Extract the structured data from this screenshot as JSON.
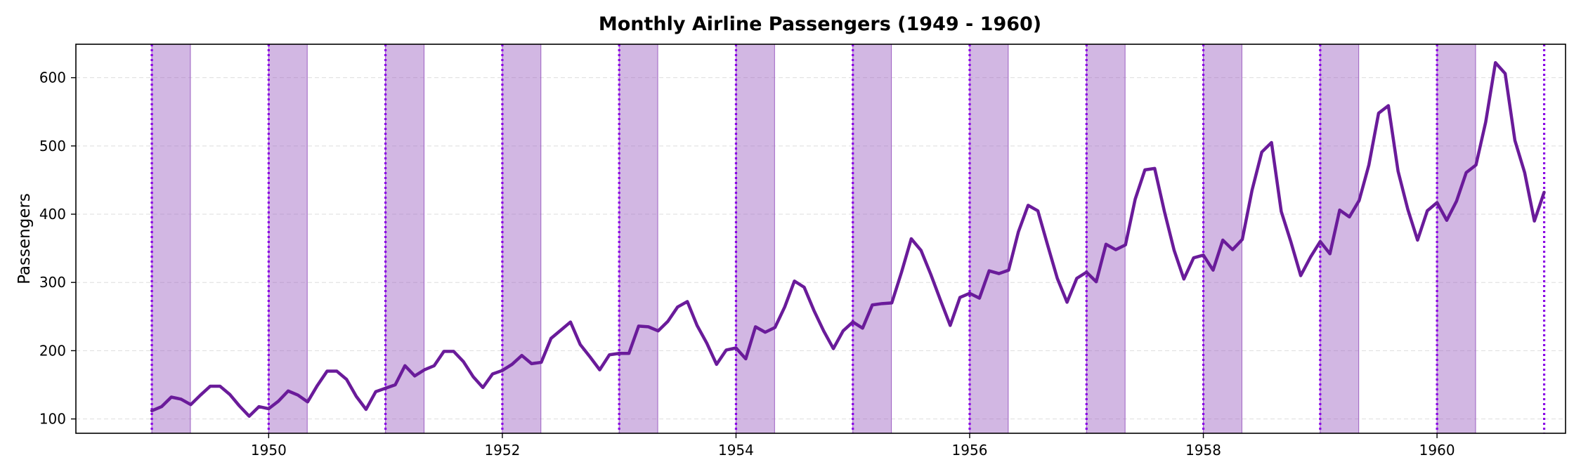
{
  "chart_data": {
    "type": "line",
    "title": "Monthly Airline Passengers (1949 - 1960)",
    "xlabel": "",
    "ylabel": "Passengers",
    "xlim": [
      1948.35,
      1961.1
    ],
    "ylim": [
      79,
      649
    ],
    "x_ticks": [
      1950,
      1952,
      1954,
      1956,
      1958,
      1960
    ],
    "y_ticks": [
      100,
      200,
      300,
      400,
      500,
      600
    ],
    "x_tick_labels": [
      "1950",
      "1952",
      "1954",
      "1956",
      "1958",
      "1960"
    ],
    "y_tick_labels": [
      "100",
      "200",
      "300",
      "400",
      "500",
      "600"
    ],
    "grid": "y-dashed",
    "x_start": "1949-01",
    "x_step": "1 month",
    "series": [
      {
        "color": "#6a1b9a",
        "values": [
          112,
          118,
          132,
          129,
          121,
          135,
          148,
          148,
          136,
          119,
          104,
          118,
          115,
          126,
          141,
          135,
          125,
          149,
          170,
          170,
          158,
          133,
          114,
          140,
          145,
          150,
          178,
          163,
          172,
          178,
          199,
          199,
          184,
          162,
          146,
          166,
          171,
          180,
          193,
          181,
          183,
          218,
          230,
          242,
          209,
          191,
          172,
          194,
          196,
          196,
          236,
          235,
          229,
          243,
          264,
          272,
          237,
          211,
          180,
          201,
          204,
          188,
          235,
          227,
          234,
          264,
          302,
          293,
          259,
          229,
          203,
          229,
          242,
          233,
          267,
          269,
          270,
          315,
          364,
          347,
          312,
          274,
          237,
          278,
          284,
          277,
          317,
          313,
          318,
          374,
          413,
          405,
          355,
          306,
          271,
          306,
          315,
          301,
          356,
          348,
          355,
          422,
          465,
          467,
          404,
          347,
          305,
          336,
          340,
          318,
          362,
          348,
          363,
          435,
          491,
          505,
          404,
          359,
          310,
          337,
          360,
          342,
          406,
          396,
          420,
          472,
          548,
          559,
          463,
          407,
          362,
          405,
          417,
          391,
          419,
          461,
          472,
          535,
          622,
          606,
          508,
          461,
          390,
          432
        ]
      }
    ],
    "shaded_spans": [
      {
        "start": 1949.0,
        "end": 1949.33
      },
      {
        "start": 1950.0,
        "end": 1950.33
      },
      {
        "start": 1951.0,
        "end": 1951.33
      },
      {
        "start": 1952.0,
        "end": 1952.33
      },
      {
        "start": 1953.0,
        "end": 1953.33
      },
      {
        "start": 1954.0,
        "end": 1954.33
      },
      {
        "start": 1955.0,
        "end": 1955.33
      },
      {
        "start": 1956.0,
        "end": 1956.33
      },
      {
        "start": 1957.0,
        "end": 1957.33
      },
      {
        "start": 1958.0,
        "end": 1958.33
      },
      {
        "start": 1959.0,
        "end": 1959.33
      },
      {
        "start": 1960.0,
        "end": 1960.33
      }
    ],
    "vlines": [
      1949,
      1950,
      1951,
      1952,
      1953,
      1954,
      1955,
      1956,
      1957,
      1958,
      1959,
      1960,
      1960.917
    ],
    "span_color": "#9c5fc2",
    "span_alpha": 0.45,
    "vline_color": "#8a00e6",
    "grid_color": "#dddddd"
  }
}
